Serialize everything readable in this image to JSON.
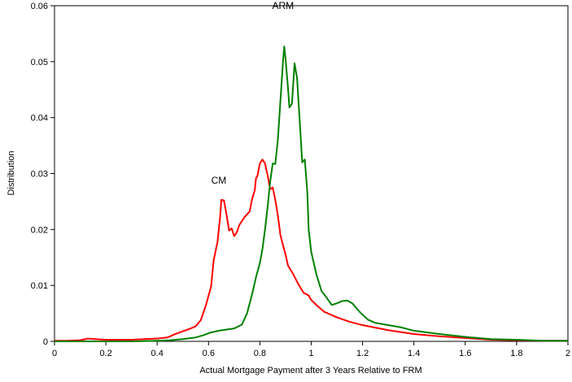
{
  "chart_data": {
    "type": "line",
    "title": "",
    "xlabel": "Actual Mortgage Payment after 3 Years Relative to FRM",
    "ylabel": "Distribution",
    "xlim": [
      0,
      2
    ],
    "ylim": [
      0,
      0.06
    ],
    "xticks": [
      0,
      0.2,
      0.4,
      0.6,
      0.8,
      1,
      1.2,
      1.4,
      1.6,
      1.8,
      2
    ],
    "xtick_labels": [
      "0",
      "0.2",
      "0.4",
      "0.6",
      "0.8",
      "1",
      "1.2",
      "1.4",
      "1.6",
      "1.8",
      "2"
    ],
    "yticks": [
      0,
      0.01,
      0.02,
      0.03,
      0.04,
      0.05,
      0.06
    ],
    "ytick_labels": [
      "0",
      "0.01",
      "0.02",
      "0.03",
      "0.04",
      "0.05",
      "0.06"
    ],
    "grid": false,
    "annotations": [
      {
        "text": "ARM",
        "x": 0.89,
        "y": 0.0594
      },
      {
        "text": "CM",
        "x": 0.64,
        "y": 0.0282
      }
    ],
    "series": [
      {
        "name": "CM",
        "color": "#ff0000",
        "points": [
          [
            0,
            0.0001
          ],
          [
            0.05,
            0.0001
          ],
          [
            0.1,
            0.0002
          ],
          [
            0.13,
            0.0005
          ],
          [
            0.16,
            0.0004
          ],
          [
            0.2,
            0.0003
          ],
          [
            0.3,
            0.0003
          ],
          [
            0.4,
            0.0005
          ],
          [
            0.44,
            0.0007
          ],
          [
            0.47,
            0.0013
          ],
          [
            0.5,
            0.0018
          ],
          [
            0.53,
            0.0023
          ],
          [
            0.55,
            0.0027
          ],
          [
            0.57,
            0.0038
          ],
          [
            0.59,
            0.0065
          ],
          [
            0.61,
            0.0098
          ],
          [
            0.62,
            0.0145
          ],
          [
            0.635,
            0.0178
          ],
          [
            0.645,
            0.0222
          ],
          [
            0.65,
            0.0253
          ],
          [
            0.66,
            0.0252
          ],
          [
            0.67,
            0.0227
          ],
          [
            0.68,
            0.0198
          ],
          [
            0.69,
            0.0202
          ],
          [
            0.7,
            0.0188
          ],
          [
            0.71,
            0.0195
          ],
          [
            0.72,
            0.0208
          ],
          [
            0.74,
            0.0222
          ],
          [
            0.76,
            0.0232
          ],
          [
            0.77,
            0.0255
          ],
          [
            0.78,
            0.027
          ],
          [
            0.785,
            0.0292
          ],
          [
            0.79,
            0.0295
          ],
          [
            0.8,
            0.0318
          ],
          [
            0.81,
            0.0325
          ],
          [
            0.82,
            0.0318
          ],
          [
            0.83,
            0.0297
          ],
          [
            0.84,
            0.0272
          ],
          [
            0.85,
            0.0275
          ],
          [
            0.86,
            0.0253
          ],
          [
            0.87,
            0.0225
          ],
          [
            0.88,
            0.019
          ],
          [
            0.89,
            0.0172
          ],
          [
            0.9,
            0.0155
          ],
          [
            0.91,
            0.0135
          ],
          [
            0.93,
            0.012
          ],
          [
            0.95,
            0.0102
          ],
          [
            0.97,
            0.0087
          ],
          [
            0.99,
            0.0082
          ],
          [
            1.0,
            0.0074
          ],
          [
            1.02,
            0.0065
          ],
          [
            1.05,
            0.0053
          ],
          [
            1.1,
            0.0043
          ],
          [
            1.15,
            0.0035
          ],
          [
            1.2,
            0.0029
          ],
          [
            1.3,
            0.002
          ],
          [
            1.4,
            0.0013
          ],
          [
            1.5,
            0.0009
          ],
          [
            1.6,
            0.0006
          ],
          [
            1.7,
            0.0003
          ],
          [
            1.8,
            0.0002
          ],
          [
            1.9,
            0.0001
          ],
          [
            2.0,
            0.0001
          ]
        ]
      },
      {
        "name": "ARM",
        "color": "#008000",
        "points": [
          [
            0,
            0
          ],
          [
            0.3,
            0
          ],
          [
            0.4,
            0.0001
          ],
          [
            0.45,
            0.0002
          ],
          [
            0.5,
            0.0004
          ],
          [
            0.55,
            0.0007
          ],
          [
            0.58,
            0.0011
          ],
          [
            0.61,
            0.0016
          ],
          [
            0.64,
            0.0019
          ],
          [
            0.67,
            0.0021
          ],
          [
            0.7,
            0.0023
          ],
          [
            0.73,
            0.003
          ],
          [
            0.75,
            0.005
          ],
          [
            0.77,
            0.0085
          ],
          [
            0.785,
            0.0115
          ],
          [
            0.8,
            0.014
          ],
          [
            0.81,
            0.0165
          ],
          [
            0.82,
            0.02
          ],
          [
            0.83,
            0.024
          ],
          [
            0.84,
            0.0285
          ],
          [
            0.85,
            0.0318
          ],
          [
            0.86,
            0.0317
          ],
          [
            0.87,
            0.036
          ],
          [
            0.88,
            0.043
          ],
          [
            0.89,
            0.05
          ],
          [
            0.895,
            0.0527
          ],
          [
            0.9,
            0.0505
          ],
          [
            0.91,
            0.045
          ],
          [
            0.915,
            0.0418
          ],
          [
            0.925,
            0.0425
          ],
          [
            0.935,
            0.0497
          ],
          [
            0.945,
            0.047
          ],
          [
            0.955,
            0.0395
          ],
          [
            0.965,
            0.032
          ],
          [
            0.975,
            0.0325
          ],
          [
            0.985,
            0.0265
          ],
          [
            0.99,
            0.02
          ],
          [
            1.0,
            0.016
          ],
          [
            1.02,
            0.012
          ],
          [
            1.04,
            0.009
          ],
          [
            1.06,
            0.0078
          ],
          [
            1.08,
            0.0065
          ],
          [
            1.1,
            0.0068
          ],
          [
            1.12,
            0.0072
          ],
          [
            1.14,
            0.0073
          ],
          [
            1.16,
            0.0068
          ],
          [
            1.19,
            0.0052
          ],
          [
            1.22,
            0.0039
          ],
          [
            1.25,
            0.0033
          ],
          [
            1.3,
            0.0029
          ],
          [
            1.35,
            0.0025
          ],
          [
            1.4,
            0.0019
          ],
          [
            1.5,
            0.0013
          ],
          [
            1.6,
            0.0008
          ],
          [
            1.7,
            0.0004
          ],
          [
            1.8,
            0.0003
          ],
          [
            1.9,
            0.0001
          ],
          [
            2.0,
            0.0001
          ]
        ]
      }
    ]
  }
}
